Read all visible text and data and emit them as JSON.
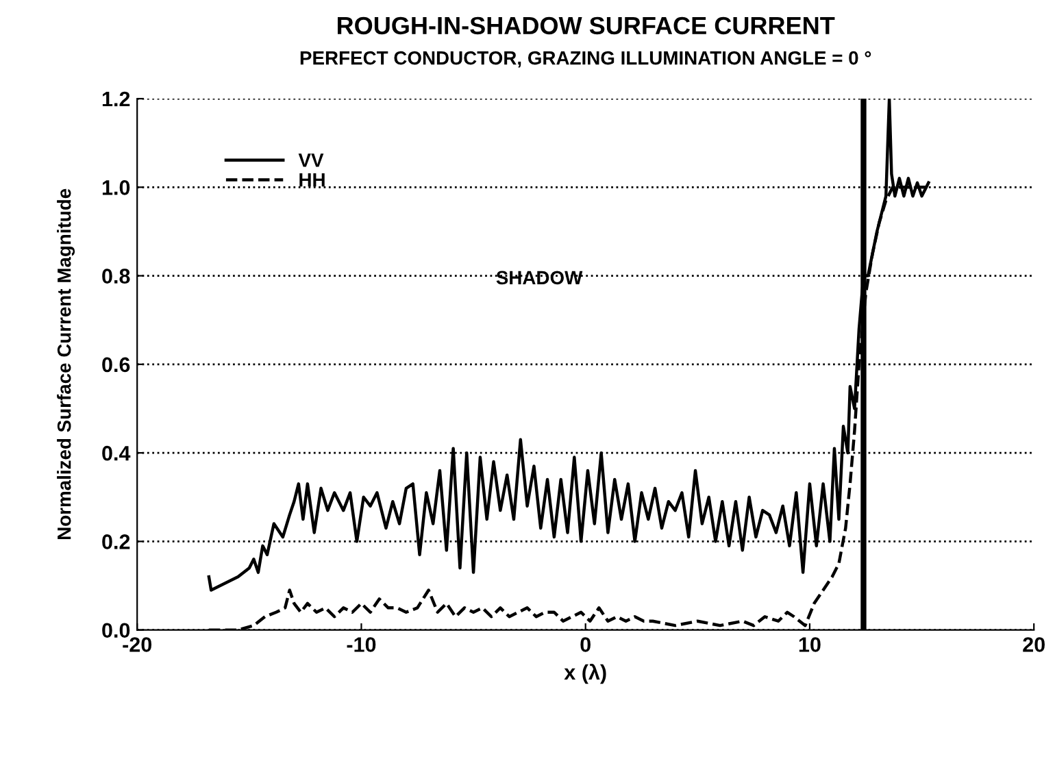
{
  "chart_data": {
    "type": "line",
    "title": "ROUGH-IN-SHADOW SURFACE CURRENT",
    "subtitle": "PERFECT CONDUCTOR, GRAZING ILLUMINATION ANGLE = 0 °",
    "xlabel": "x (λ)",
    "ylabel": "Normalized Surface Current Magnitude",
    "annotations": [
      "SHADOW"
    ],
    "xlim": [
      -20,
      20
    ],
    "xticks": [
      -20,
      -10,
      0,
      10,
      20
    ],
    "ylim": [
      0,
      1.2
    ],
    "yticks": [
      {
        "value": 0,
        "label": "0.0"
      },
      0.2,
      0.4,
      0.6,
      0.8,
      {
        "value": 1,
        "label": "1.0"
      },
      1.2
    ],
    "grid": "y",
    "legend": "top left",
    "ref_lines": [
      {
        "axis": "x",
        "value": 12.4,
        "color": "#000000",
        "line_style": "solid"
      }
    ],
    "series": [
      {
        "name": "VV",
        "color": "#000000",
        "line_style": "solid",
        "x": [
          -16.8,
          -16.7,
          -15.5,
          -15.0,
          -14.8,
          -14.6,
          -14.4,
          -14.2,
          -13.9,
          -13.5,
          -13.2,
          -13.0,
          -12.8,
          -12.6,
          -12.4,
          -12.1,
          -11.8,
          -11.5,
          -11.2,
          -10.8,
          -10.5,
          -10.2,
          -9.9,
          -9.6,
          -9.3,
          -8.9,
          -8.6,
          -8.3,
          -8.0,
          -7.7,
          -7.4,
          -7.1,
          -6.8,
          -6.5,
          -6.2,
          -5.9,
          -5.6,
          -5.3,
          -5.0,
          -4.7,
          -4.4,
          -4.1,
          -3.8,
          -3.5,
          -3.2,
          -2.9,
          -2.6,
          -2.3,
          -2.0,
          -1.7,
          -1.4,
          -1.1,
          -0.8,
          -0.5,
          -0.2,
          0.1,
          0.4,
          0.7,
          1.0,
          1.3,
          1.6,
          1.9,
          2.2,
          2.5,
          2.8,
          3.1,
          3.4,
          3.7,
          4.0,
          4.3,
          4.6,
          4.9,
          5.2,
          5.5,
          5.8,
          6.1,
          6.4,
          6.7,
          7.0,
          7.3,
          7.6,
          7.9,
          8.2,
          8.5,
          8.8,
          9.1,
          9.4,
          9.7,
          10.0,
          10.3,
          10.6,
          10.9,
          11.1,
          11.3,
          11.5,
          11.7,
          11.8,
          12.0,
          12.2,
          12.4,
          12.6,
          13.0,
          13.4,
          13.55,
          13.65,
          13.8,
          14.0,
          14.2,
          14.4,
          14.6,
          14.8,
          15.0,
          15.3
        ],
        "values": [
          0.12,
          0.09,
          0.12,
          0.14,
          0.16,
          0.13,
          0.19,
          0.17,
          0.24,
          0.21,
          0.26,
          0.29,
          0.33,
          0.25,
          0.33,
          0.22,
          0.32,
          0.27,
          0.31,
          0.27,
          0.31,
          0.2,
          0.3,
          0.28,
          0.31,
          0.23,
          0.29,
          0.24,
          0.32,
          0.33,
          0.17,
          0.31,
          0.24,
          0.36,
          0.18,
          0.41,
          0.14,
          0.4,
          0.13,
          0.39,
          0.25,
          0.38,
          0.27,
          0.35,
          0.25,
          0.43,
          0.28,
          0.37,
          0.23,
          0.34,
          0.21,
          0.34,
          0.22,
          0.39,
          0.2,
          0.36,
          0.24,
          0.4,
          0.22,
          0.34,
          0.25,
          0.33,
          0.2,
          0.31,
          0.25,
          0.32,
          0.23,
          0.29,
          0.27,
          0.31,
          0.21,
          0.36,
          0.24,
          0.3,
          0.2,
          0.29,
          0.19,
          0.29,
          0.18,
          0.3,
          0.21,
          0.27,
          0.26,
          0.22,
          0.28,
          0.19,
          0.31,
          0.13,
          0.33,
          0.19,
          0.33,
          0.2,
          0.41,
          0.25,
          0.46,
          0.4,
          0.55,
          0.5,
          0.68,
          0.8,
          0.8,
          0.9,
          0.98,
          1.2,
          1.03,
          0.98,
          1.02,
          0.98,
          1.02,
          0.98,
          1.01,
          0.98,
          1.01
        ]
      },
      {
        "name": "HH",
        "color": "#000000",
        "line_style": "dashed",
        "x": [
          -16.8,
          -15.5,
          -14.8,
          -14.3,
          -13.8,
          -13.4,
          -13.2,
          -13.0,
          -12.7,
          -12.4,
          -12.0,
          -11.6,
          -11.2,
          -10.8,
          -10.4,
          -10.0,
          -9.6,
          -9.2,
          -8.8,
          -8.4,
          -8.0,
          -7.5,
          -7.0,
          -6.6,
          -6.2,
          -5.8,
          -5.4,
          -5.0,
          -4.6,
          -4.2,
          -3.8,
          -3.4,
          -3.0,
          -2.6,
          -2.2,
          -1.8,
          -1.4,
          -1.0,
          -0.6,
          -0.2,
          0.2,
          0.6,
          1.0,
          1.4,
          1.8,
          2.2,
          2.6,
          3.0,
          4.0,
          5.0,
          6.0,
          7.0,
          7.5,
          8.0,
          8.6,
          9.0,
          9.3,
          9.8,
          10.2,
          10.6,
          11.0,
          11.3,
          11.6,
          11.8,
          12.0,
          12.2,
          12.5,
          12.8,
          13.1,
          13.4,
          13.7,
          15.3
        ],
        "values": [
          0.0,
          0.0,
          0.01,
          0.03,
          0.04,
          0.05,
          0.09,
          0.06,
          0.04,
          0.06,
          0.04,
          0.05,
          0.03,
          0.05,
          0.04,
          0.06,
          0.04,
          0.07,
          0.05,
          0.05,
          0.04,
          0.05,
          0.09,
          0.04,
          0.06,
          0.03,
          0.05,
          0.04,
          0.05,
          0.03,
          0.05,
          0.03,
          0.04,
          0.05,
          0.03,
          0.04,
          0.04,
          0.02,
          0.03,
          0.04,
          0.02,
          0.05,
          0.02,
          0.03,
          0.02,
          0.03,
          0.02,
          0.02,
          0.01,
          0.02,
          0.01,
          0.02,
          0.01,
          0.03,
          0.02,
          0.04,
          0.03,
          0.01,
          0.06,
          0.09,
          0.12,
          0.15,
          0.23,
          0.33,
          0.45,
          0.6,
          0.76,
          0.85,
          0.92,
          0.97,
          1.0,
          1.0
        ]
      }
    ]
  }
}
